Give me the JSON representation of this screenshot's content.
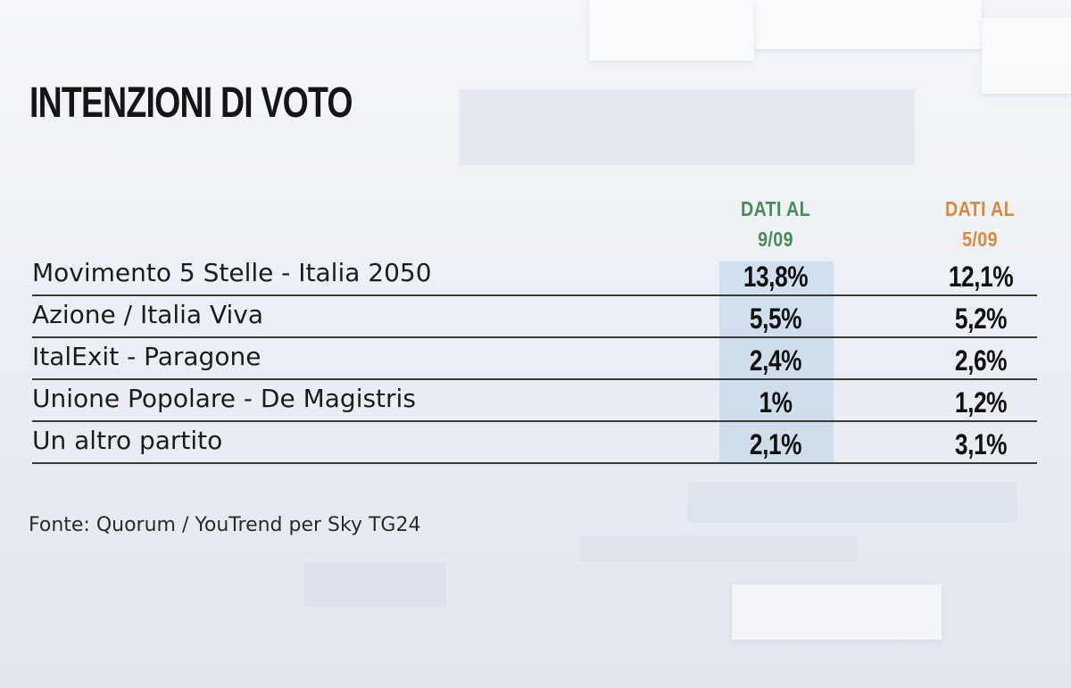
{
  "title": "INTENZIONI DI VOTO",
  "source": "Fonte: Quorum / YouTrend per Sky TG24",
  "colors": {
    "col1_header": "#4a8a5a",
    "col2_header": "#d98a3a",
    "highlight": "#96b9e1"
  },
  "chart_data": {
    "type": "table",
    "title": "INTENZIONI DI VOTO",
    "columns": [
      {
        "line1": "DATI AL",
        "line2": "9/09"
      },
      {
        "line1": "DATI AL",
        "line2": "5/09"
      }
    ],
    "rows": [
      {
        "party": "Movimento 5 Stelle - Italia 2050",
        "v1": "13,8%",
        "v2": "12,1%"
      },
      {
        "party": "Azione / Italia Viva",
        "v1": "5,5%",
        "v2": "5,2%"
      },
      {
        "party": "ItalExit - Paragone",
        "v1": "2,4%",
        "v2": "2,6%"
      },
      {
        "party": "Unione Popolare - De Magistris",
        "v1": "1%",
        "v2": "1,2%"
      },
      {
        "party": "Un altro partito",
        "v1": "2,1%",
        "v2": "3,1%"
      }
    ]
  }
}
